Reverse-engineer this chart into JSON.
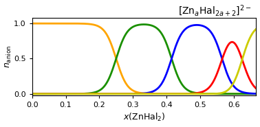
{
  "title": "$[\\mathrm{Zn}_a\\mathrm{Hal}_{2a+2}]^{2-}$",
  "xlabel": "$x(\\mathrm{ZnHal}_2)$",
  "ylabel": "$n_{\\mathrm{anion}}$",
  "xlim": [
    0.0,
    0.6667
  ],
  "ylim": [
    -0.02,
    1.08
  ],
  "xticks": [
    0.0,
    0.1,
    0.2,
    0.3,
    0.4,
    0.5,
    0.6
  ],
  "yticks": [
    0.0,
    0.5,
    1.0
  ],
  "colors": [
    "#FFA500",
    "#1a9000",
    "#0000FF",
    "#FF0000",
    "#cccc00"
  ],
  "linewidth": 2.0,
  "figsize": [
    3.78,
    1.85
  ],
  "dpi": 100,
  "K": 1000000.0
}
